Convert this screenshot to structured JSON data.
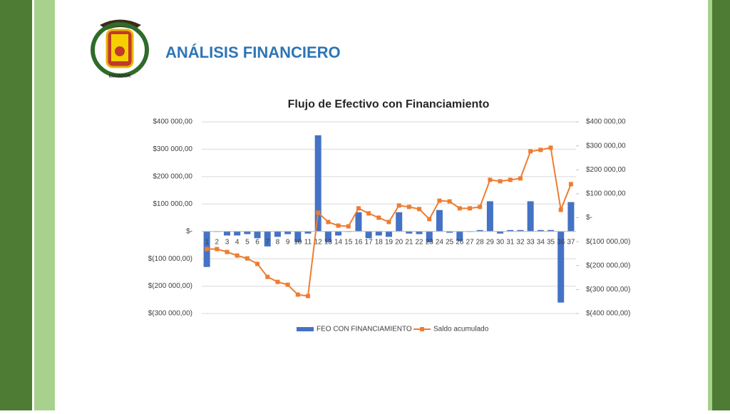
{
  "header": {
    "title": "ANÁLISIS FINANCIERO",
    "logo_text": "ECUADOR"
  },
  "chart_data": {
    "type": "bar_line",
    "title": "Flujo de Efectivo con Financiamiento",
    "categories": [
      "1",
      "2",
      "3",
      "4",
      "5",
      "6",
      "7",
      "8",
      "9",
      "10",
      "11",
      "12",
      "13",
      "14",
      "15",
      "16",
      "17",
      "18",
      "19",
      "20",
      "21",
      "22",
      "23",
      "24",
      "25",
      "26",
      "27",
      "28",
      "29",
      "30",
      "31",
      "32",
      "33",
      "34",
      "35",
      "36",
      "37"
    ],
    "series": [
      {
        "name": "FEO CON FINANCIAMIENTO",
        "color": "#4472c4",
        "kind": "bar",
        "axis": "y",
        "values": [
          -130000,
          -2000,
          -15000,
          -15000,
          -10000,
          -25000,
          -55000,
          -20000,
          -10000,
          -40000,
          -8000,
          351000,
          -40000,
          -15000,
          -2000,
          70000,
          -25000,
          -15000,
          -20000,
          70000,
          -8000,
          -10000,
          -40000,
          78000,
          -5000,
          -35000,
          -2000,
          5000,
          110000,
          -8000,
          5000,
          5000,
          110000,
          5000,
          5000,
          -260000,
          107000
        ]
      },
      {
        "name": "Saldo acumulado",
        "color": "#ed7d31",
        "kind": "line",
        "axis": "y2",
        "values": [
          -131000,
          -131000,
          -143000,
          -158000,
          -170000,
          -193000,
          -247000,
          -268000,
          -280000,
          -321000,
          -327000,
          21000,
          -18000,
          -33000,
          -36000,
          39000,
          18000,
          0,
          -18000,
          51000,
          45000,
          36000,
          -6000,
          71000,
          68000,
          39000,
          39000,
          45000,
          158000,
          152000,
          158000,
          164000,
          277000,
          283000,
          292000,
          33000,
          140000
        ]
      }
    ],
    "ylim": [
      -300000,
      400000
    ],
    "yticks": [
      {
        "value": -300000,
        "label": "$(300 000,00)"
      },
      {
        "value": -200000,
        "label": "$(200 000,00)"
      },
      {
        "value": -100000,
        "label": "$(100 000,00)"
      },
      {
        "value": 0,
        "label": "$-"
      },
      {
        "value": 100000,
        "label": "$100 000,00"
      },
      {
        "value": 200000,
        "label": "$200 000,00"
      },
      {
        "value": 300000,
        "label": "$300 000,00"
      },
      {
        "value": 400000,
        "label": "$400 000,00"
      }
    ],
    "y2lim": [
      -400000,
      400000
    ],
    "y2ticks": [
      {
        "value": -400000,
        "label": "$(400 000,00)"
      },
      {
        "value": -300000,
        "label": "$(300 000,00)"
      },
      {
        "value": -200000,
        "label": "$(200 000,00)"
      },
      {
        "value": -100000,
        "label": "$(100 000,00)"
      },
      {
        "value": 0,
        "label": "$-"
      },
      {
        "value": 100000,
        "label": "$100 000,00"
      },
      {
        "value": 200000,
        "label": "$200 000,00"
      },
      {
        "value": 300000,
        "label": "$300 000,00"
      },
      {
        "value": 400000,
        "label": "$400 000,00"
      }
    ],
    "grid": true,
    "legend": "bottom"
  }
}
